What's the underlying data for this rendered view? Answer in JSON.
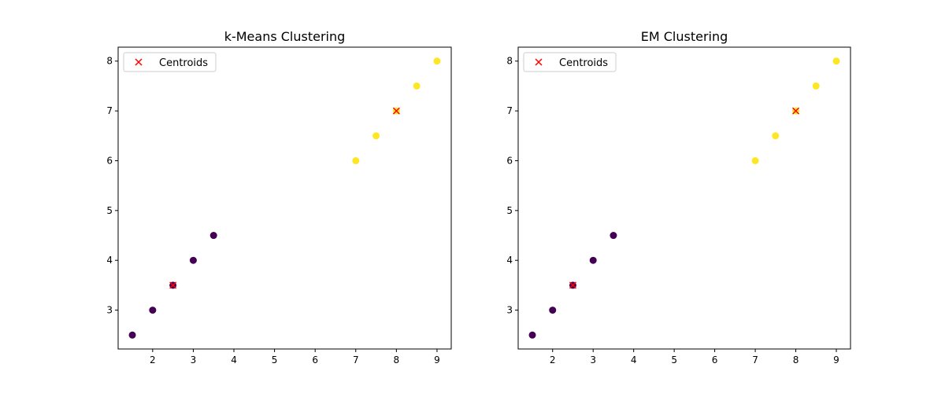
{
  "chart_data": [
    {
      "type": "scatter",
      "title": "k-Means Clustering",
      "xlabel": "",
      "ylabel": "",
      "xlim": [
        1.15,
        9.35
      ],
      "ylim": [
        2.22,
        8.28
      ],
      "xticks": [
        2,
        3,
        4,
        5,
        6,
        7,
        8,
        9
      ],
      "yticks": [
        3,
        4,
        5,
        6,
        7,
        8
      ],
      "grid": false,
      "legend": {
        "position": "top-left",
        "entries": [
          "Centroids"
        ]
      },
      "colors": {
        "cluster_0": "#440154",
        "cluster_1": "#fde725",
        "centroid": "#ff0000"
      },
      "points": [
        {
          "x": 1.5,
          "y": 2.5,
          "cluster": 0
        },
        {
          "x": 2.0,
          "y": 3.0,
          "cluster": 0
        },
        {
          "x": 2.5,
          "y": 3.5,
          "cluster": 0
        },
        {
          "x": 3.0,
          "y": 4.0,
          "cluster": 0
        },
        {
          "x": 3.5,
          "y": 4.5,
          "cluster": 0
        },
        {
          "x": 7.0,
          "y": 6.0,
          "cluster": 1
        },
        {
          "x": 7.5,
          "y": 6.5,
          "cluster": 1
        },
        {
          "x": 8.0,
          "y": 7.0,
          "cluster": 1
        },
        {
          "x": 8.5,
          "y": 7.5,
          "cluster": 1
        },
        {
          "x": 9.0,
          "y": 8.0,
          "cluster": 1
        }
      ],
      "centroids": [
        {
          "x": 2.5,
          "y": 3.5
        },
        {
          "x": 8.0,
          "y": 7.0
        }
      ]
    },
    {
      "type": "scatter",
      "title": "EM Clustering",
      "xlabel": "",
      "ylabel": "",
      "xlim": [
        1.15,
        9.35
      ],
      "ylim": [
        2.22,
        8.28
      ],
      "xticks": [
        2,
        3,
        4,
        5,
        6,
        7,
        8,
        9
      ],
      "yticks": [
        3,
        4,
        5,
        6,
        7,
        8
      ],
      "grid": false,
      "legend": {
        "position": "top-left",
        "entries": [
          "Centroids"
        ]
      },
      "colors": {
        "cluster_0": "#440154",
        "cluster_1": "#fde725",
        "centroid": "#ff0000"
      },
      "points": [
        {
          "x": 1.5,
          "y": 2.5,
          "cluster": 0
        },
        {
          "x": 2.0,
          "y": 3.0,
          "cluster": 0
        },
        {
          "x": 2.5,
          "y": 3.5,
          "cluster": 0
        },
        {
          "x": 3.0,
          "y": 4.0,
          "cluster": 0
        },
        {
          "x": 3.5,
          "y": 4.5,
          "cluster": 0
        },
        {
          "x": 7.0,
          "y": 6.0,
          "cluster": 1
        },
        {
          "x": 7.5,
          "y": 6.5,
          "cluster": 1
        },
        {
          "x": 8.0,
          "y": 7.0,
          "cluster": 1
        },
        {
          "x": 8.5,
          "y": 7.5,
          "cluster": 1
        },
        {
          "x": 9.0,
          "y": 8.0,
          "cluster": 1
        }
      ],
      "centroids": [
        {
          "x": 2.5,
          "y": 3.5
        },
        {
          "x": 8.0,
          "y": 7.0
        }
      ]
    }
  ]
}
